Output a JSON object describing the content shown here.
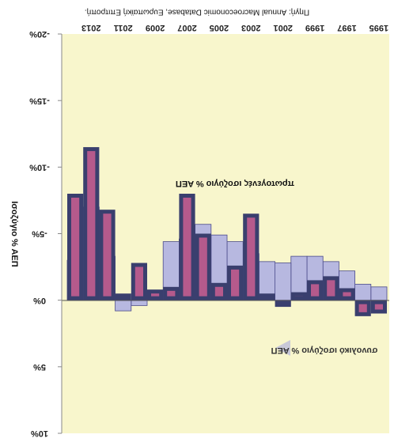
{
  "chart_data": {
    "type": "bar",
    "rendering": "mirrored",
    "source": "Πηγή: Annual Macroeconomic Database, Ευρωπαϊκή Επιτροπή.",
    "ylabel": "Ισοζύγιο % ΑΕΠ",
    "ylim": [
      -20,
      10
    ],
    "y_ticks": [
      "-20%",
      "-15%",
      "-10%",
      "-5%",
      "0%",
      "5%",
      "10%"
    ],
    "categories": [
      "1995",
      "1996",
      "1997",
      "1998",
      "1999",
      "2000",
      "2001",
      "2002",
      "2003",
      "2004",
      "2005",
      "2006",
      "2007",
      "2008",
      "2009",
      "2010",
      "2011",
      "2012",
      "2013",
      "2014"
    ],
    "x_tick_labels": [
      "1995",
      "1997",
      "1999",
      "2001",
      "2003",
      "2005",
      "2007",
      "2009",
      "2011",
      "2013"
    ],
    "series": [
      {
        "name": "πρωτογενές ισοζύγιο",
        "values": [
          1.0,
          1.2,
          -0.9,
          -1.8,
          -1.5,
          -0.6,
          0.5,
          -0.5,
          -6.5,
          -2.6,
          -1.3,
          -5.0,
          -8.0,
          -1.0,
          -0.8,
          -2.8,
          -0.5,
          -6.8,
          -11.5,
          -8.0
        ]
      },
      {
        "name": "συνολικό ισοζύγιο",
        "values": [
          -1.0,
          -1.2,
          -2.2,
          -2.9,
          -3.3,
          -3.3,
          -2.8,
          -2.9,
          -3.5,
          -4.4,
          -4.9,
          -5.7,
          -4.6,
          -4.4,
          -0.5,
          0.4,
          0.8,
          -3.3,
          -7.0,
          -3.0
        ]
      }
    ],
    "annotations": [
      "πρωτογενές ισοζύγιο % ΑΕΠ",
      "συνολικό ισοζύγιο % ΑΕΠ"
    ],
    "colors": {
      "background": "#f8f6cc",
      "total_bar": "#b7b8e0",
      "total_edge": "#4a4a8a",
      "primary_bar": "#b55a8c",
      "primary_edge": "#3a3f6e",
      "arrow": "#c8c8d8"
    },
    "grid": false
  }
}
